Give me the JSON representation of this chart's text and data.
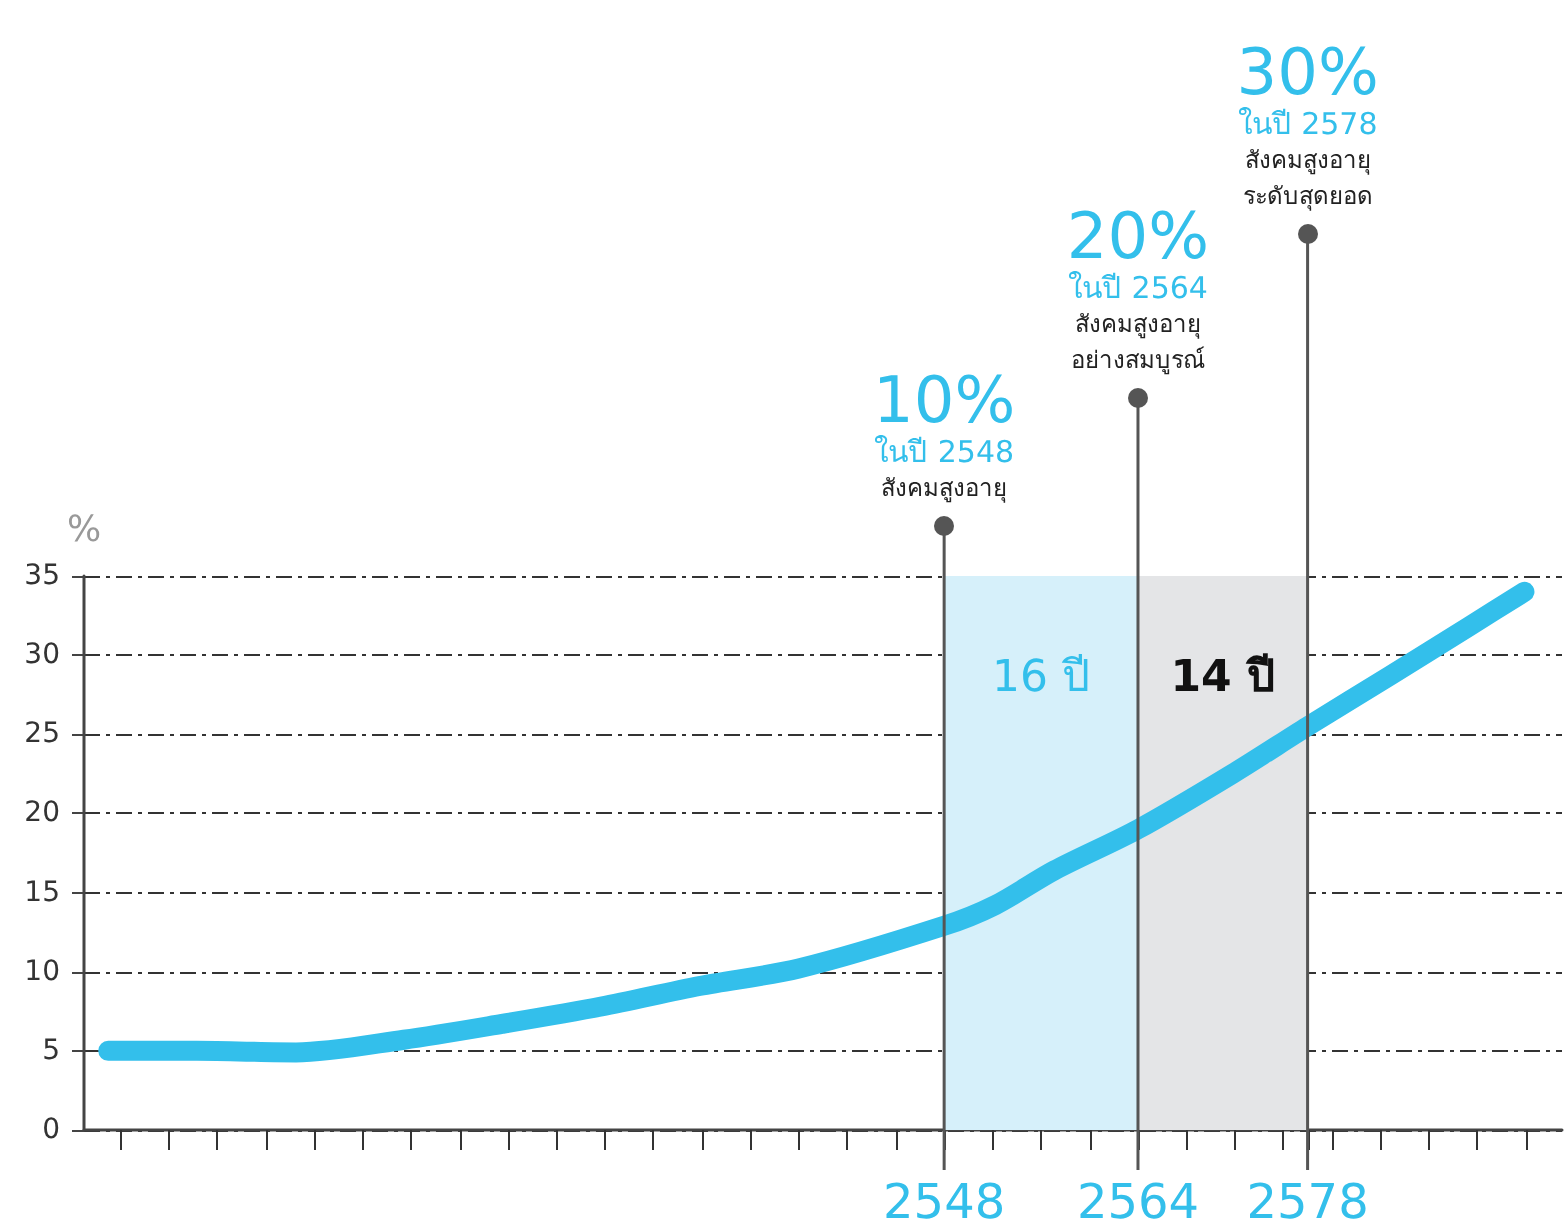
{
  "chart_data": {
    "type": "line",
    "ylabel": "%",
    "x": [
      2479,
      2486.3,
      2494.5,
      2503.4,
      2511.5,
      2519.7,
      2527.8,
      2536,
      2548,
      2552.2,
      2557.1,
      2564,
      2571.8,
      2578,
      2584.8,
      2591.3,
      2595.9
    ],
    "series": [
      {
        "color": "#33bfeb",
        "values": [
          5.0,
          5.0,
          4.9,
          5.7,
          6.7,
          7.8,
          9.1,
          10.2,
          12.9,
          14.2,
          16.4,
          19.0,
          22.5,
          25.5,
          28.7,
          31.8,
          34.0
        ]
      }
    ],
    "xlim": [
      2477,
      2599
    ],
    "xticks": [
      {
        "value": 2480,
        "label": null
      },
      {
        "value": 2484,
        "label": null
      },
      {
        "value": 2488,
        "label": null
      },
      {
        "value": 2492,
        "label": null
      },
      {
        "value": 2496,
        "label": null
      },
      {
        "value": 2500,
        "label": null
      },
      {
        "value": 2504,
        "label": null
      },
      {
        "value": 2508,
        "label": null
      },
      {
        "value": 2512,
        "label": null
      },
      {
        "value": 2516,
        "label": null
      },
      {
        "value": 2520,
        "label": null
      },
      {
        "value": 2524,
        "label": null
      },
      {
        "value": 2528,
        "label": null
      },
      {
        "value": 2532,
        "label": null
      },
      {
        "value": 2536,
        "label": null
      },
      {
        "value": 2540,
        "label": null
      },
      {
        "value": 2544,
        "label": null
      },
      2548,
      {
        "value": 2552,
        "label": null
      },
      {
        "value": 2556,
        "label": null
      },
      {
        "value": 2560,
        "label": null
      },
      2564,
      {
        "value": 2568,
        "label": null
      },
      {
        "value": 2572,
        "label": null
      },
      {
        "value": 2576,
        "label": null
      },
      2578,
      {
        "value": 2580,
        "label": null
      },
      {
        "value": 2584,
        "label": null
      },
      {
        "value": 2588,
        "label": null
      },
      {
        "value": 2592,
        "label": null
      },
      {
        "value": 2596,
        "label": null
      }
    ],
    "ylim": [
      0,
      35
    ],
    "yticks": [
      0,
      5,
      10,
      15,
      20,
      25,
      30,
      35
    ],
    "grid": "y",
    "line_style": "solid",
    "bands": [
      {
        "axis": "x",
        "from": 2548,
        "to": 2564,
        "label": "16 ปี",
        "color": "#d6f0fa"
      },
      {
        "axis": "x",
        "from": 2564,
        "to": 2578,
        "label": "14 ปี",
        "color": "#e4e5e7"
      }
    ],
    "ref_lines": [
      {
        "axis": "x",
        "value": 2548,
        "label": "10%\nในปี 2548\nสังคมสูงอายุ",
        "color": "#555555"
      },
      {
        "axis": "x",
        "value": 2564,
        "label": "20%\nในปี 2564\nสังคมสูงอายุ\nอย่างสมบูรณ์",
        "color": "#555555"
      },
      {
        "axis": "x",
        "value": 2578,
        "label": "30%\nในปี 2578\nสังคมสูงอายุ\nระดับสุดยอด",
        "color": "#555555"
      }
    ]
  }
}
